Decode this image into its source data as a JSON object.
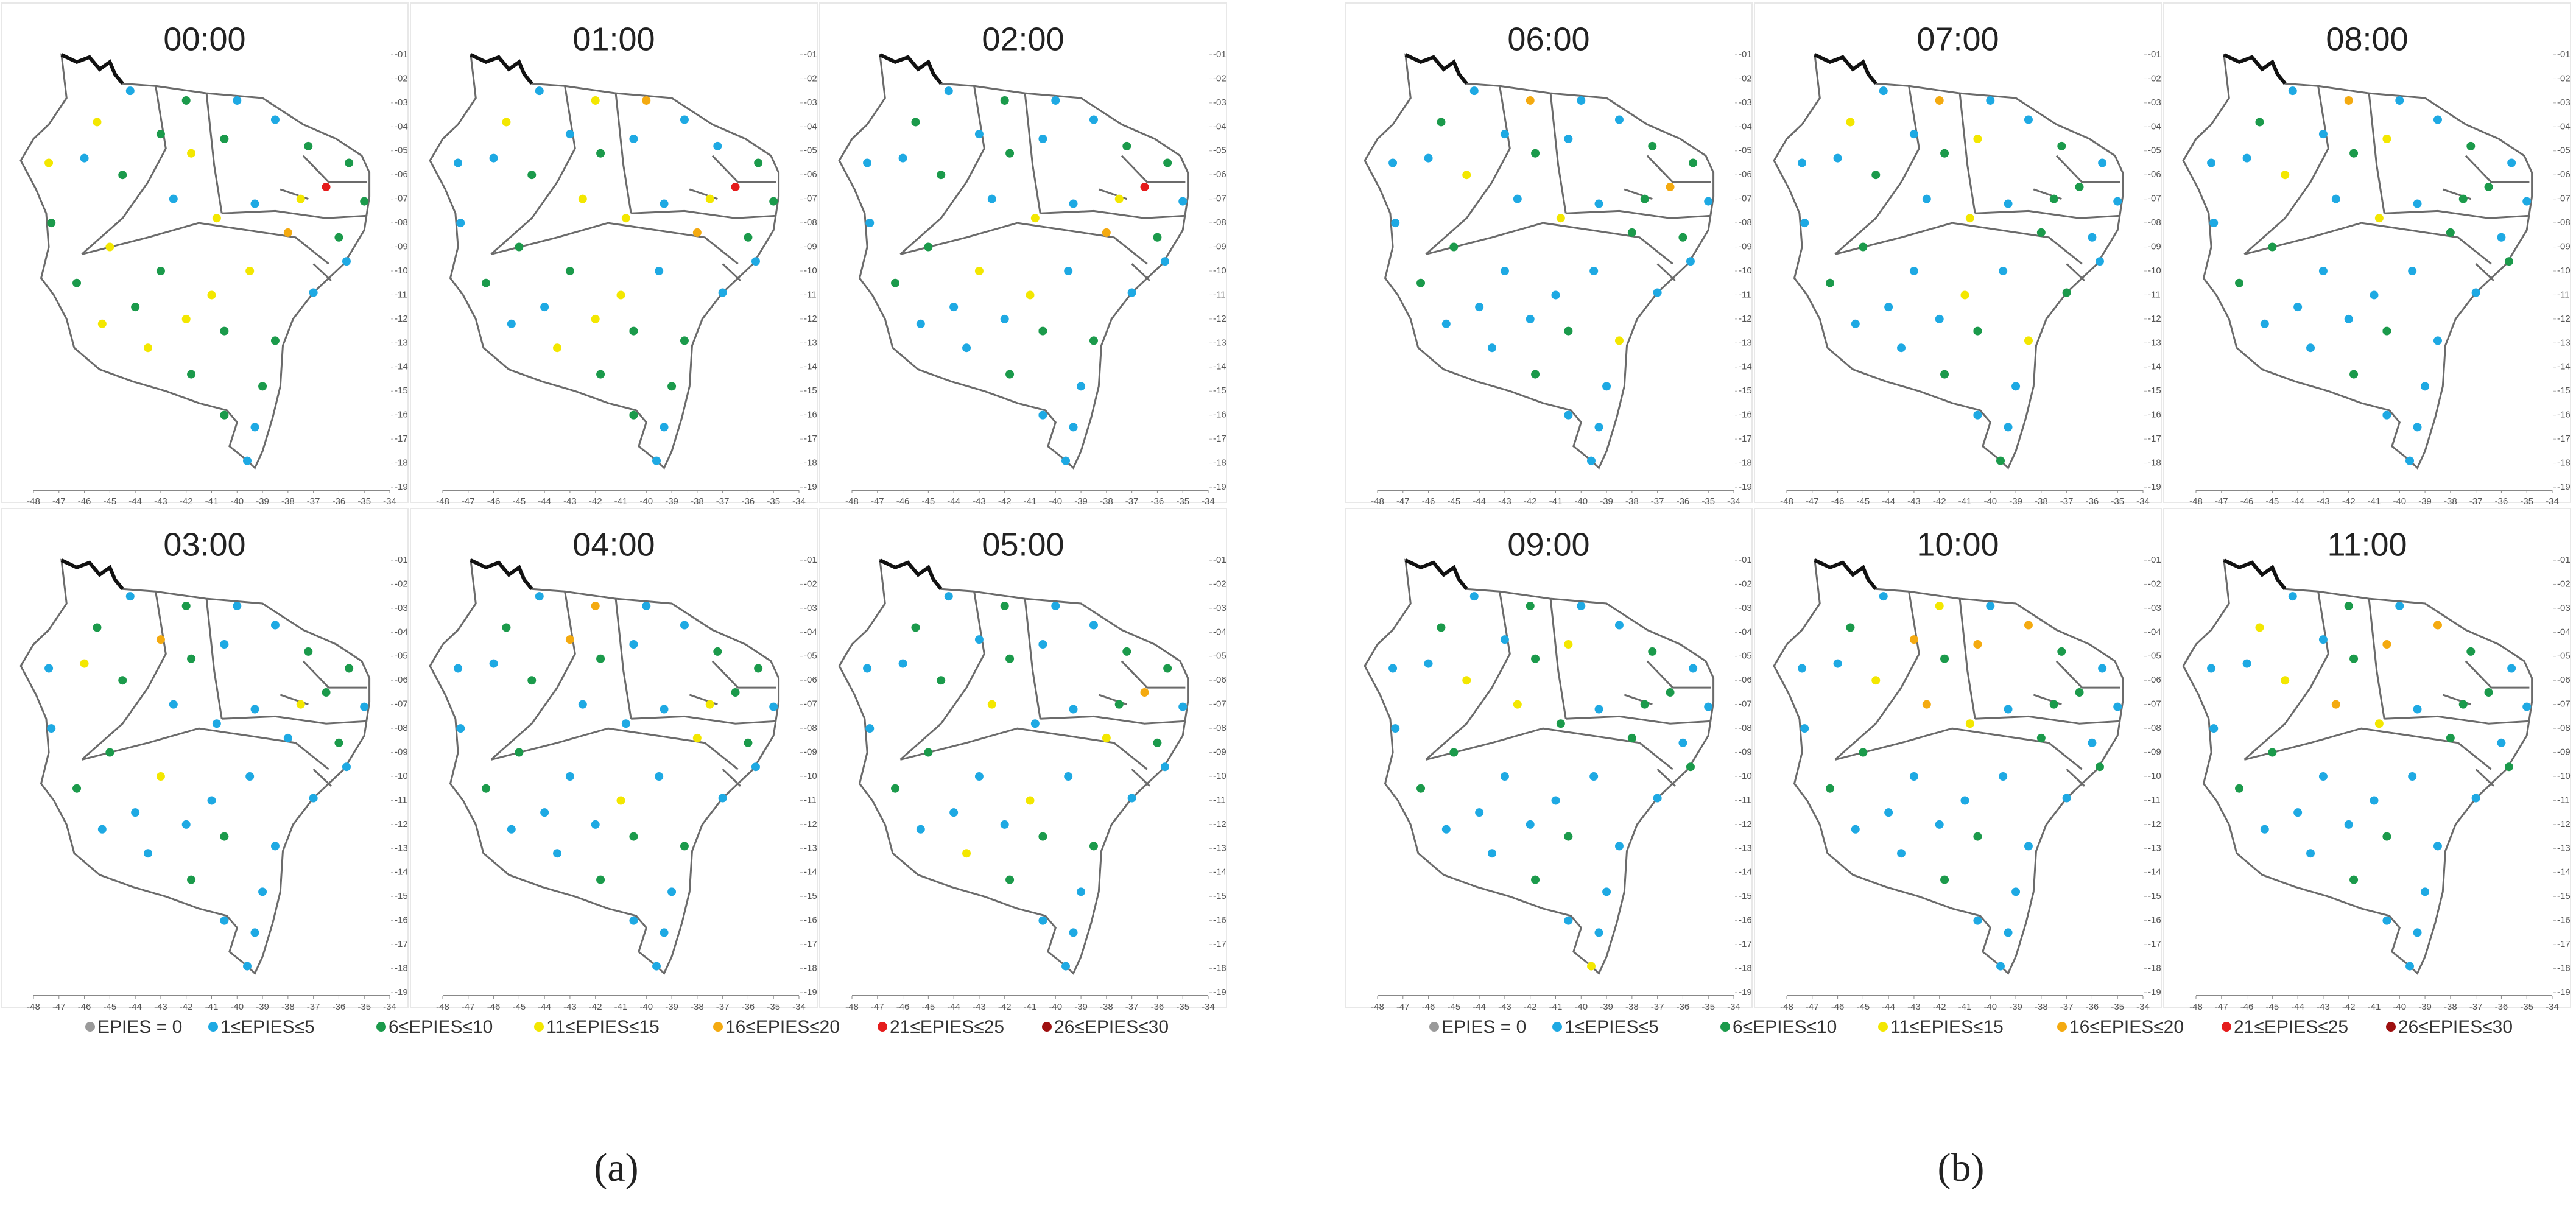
{
  "groups": [
    {
      "label": "(a)",
      "panels": [
        {
          "title": "00:00",
          "classes": [
            1,
            2,
            1,
            1,
            2,
            2,
            5,
            2,
            3,
            1,
            2,
            3,
            2,
            3,
            3,
            1,
            2,
            1,
            3,
            4,
            2,
            1,
            1,
            2,
            2,
            1,
            1,
            2,
            2,
            3,
            3,
            2,
            2,
            3,
            2,
            3,
            3,
            2,
            3,
            2
          ]
        },
        {
          "title": "01:00",
          "classes": [
            1,
            3,
            4,
            1,
            1,
            2,
            5,
            2,
            3,
            1,
            1,
            2,
            1,
            3,
            1,
            1,
            2,
            3,
            3,
            4,
            2,
            1,
            1,
            2,
            2,
            1,
            1,
            2,
            2,
            3,
            1,
            2,
            1,
            2,
            2,
            3,
            1,
            2,
            3,
            1
          ]
        },
        {
          "title": "02:00",
          "classes": [
            1,
            2,
            1,
            1,
            2,
            2,
            5,
            1,
            3,
            1,
            1,
            2,
            1,
            2,
            1,
            1,
            2,
            1,
            3,
            4,
            2,
            1,
            1,
            2,
            1,
            1,
            1,
            1,
            2,
            1,
            1,
            2,
            1,
            2,
            3,
            3,
            1,
            2,
            1,
            1
          ]
        },
        {
          "title": "03:00",
          "classes": [
            1,
            2,
            1,
            1,
            2,
            2,
            2,
            1,
            3,
            1,
            1,
            2,
            4,
            2,
            1,
            3,
            2,
            1,
            1,
            1,
            2,
            1,
            1,
            1,
            1,
            1,
            1,
            1,
            2,
            1,
            1,
            2,
            1,
            2,
            3,
            1,
            1,
            2,
            1,
            1
          ]
        },
        {
          "title": "04:00",
          "classes": [
            1,
            4,
            1,
            1,
            2,
            2,
            2,
            1,
            3,
            1,
            1,
            2,
            4,
            2,
            1,
            1,
            2,
            1,
            1,
            3,
            2,
            1,
            1,
            2,
            1,
            1,
            1,
            1,
            2,
            1,
            1,
            2,
            1,
            2,
            1,
            3,
            1,
            2,
            1,
            1
          ]
        },
        {
          "title": "05:00",
          "classes": [
            1,
            2,
            1,
            1,
            2,
            2,
            4,
            1,
            2,
            1,
            1,
            2,
            1,
            2,
            1,
            1,
            2,
            3,
            1,
            3,
            2,
            1,
            1,
            2,
            1,
            1,
            1,
            1,
            2,
            3,
            1,
            2,
            1,
            2,
            1,
            3,
            1,
            2,
            1,
            1
          ]
        }
      ]
    },
    {
      "label": "(b)",
      "panels": [
        {
          "title": "06:00",
          "classes": [
            1,
            4,
            1,
            1,
            2,
            2,
            4,
            1,
            2,
            1,
            1,
            2,
            1,
            2,
            1,
            1,
            3,
            1,
            3,
            2,
            2,
            1,
            1,
            3,
            1,
            1,
            1,
            1,
            2,
            1,
            1,
            2,
            1,
            2,
            1,
            1,
            1,
            2,
            1,
            1
          ]
        },
        {
          "title": "07:00",
          "classes": [
            1,
            4,
            1,
            1,
            2,
            1,
            2,
            1,
            2,
            1,
            3,
            2,
            1,
            3,
            1,
            1,
            2,
            1,
            3,
            2,
            1,
            1,
            2,
            3,
            1,
            1,
            2,
            1,
            2,
            1,
            1,
            2,
            1,
            2,
            1,
            3,
            1,
            2,
            1,
            1
          ]
        },
        {
          "title": "08:00",
          "classes": [
            1,
            4,
            1,
            1,
            2,
            1,
            2,
            1,
            2,
            1,
            3,
            2,
            1,
            2,
            1,
            1,
            3,
            1,
            3,
            2,
            1,
            2,
            1,
            1,
            1,
            1,
            1,
            1,
            2,
            1,
            1,
            2,
            1,
            2,
            1,
            1,
            1,
            2,
            1,
            1
          ]
        },
        {
          "title": "09:00",
          "classes": [
            1,
            2,
            1,
            1,
            2,
            1,
            2,
            1,
            2,
            1,
            3,
            2,
            1,
            2,
            1,
            1,
            3,
            3,
            2,
            2,
            1,
            2,
            1,
            1,
            1,
            1,
            3,
            1,
            2,
            1,
            1,
            2,
            1,
            2,
            1,
            1,
            1,
            2,
            1,
            1
          ]
        },
        {
          "title": "10:00",
          "classes": [
            1,
            3,
            1,
            4,
            2,
            1,
            2,
            1,
            2,
            1,
            4,
            2,
            4,
            2,
            1,
            1,
            3,
            4,
            3,
            2,
            1,
            2,
            1,
            1,
            1,
            1,
            1,
            1,
            2,
            1,
            1,
            2,
            1,
            2,
            1,
            1,
            1,
            2,
            1,
            1
          ]
        },
        {
          "title": "11:00",
          "classes": [
            1,
            2,
            1,
            4,
            2,
            1,
            2,
            1,
            2,
            1,
            4,
            2,
            1,
            3,
            1,
            1,
            3,
            4,
            3,
            2,
            1,
            2,
            1,
            1,
            1,
            1,
            1,
            1,
            2,
            1,
            1,
            2,
            1,
            2,
            1,
            1,
            1,
            2,
            1,
            1
          ]
        }
      ]
    }
  ],
  "legend": [
    {
      "label": "EPIES = 0",
      "color": "#9a9a9a"
    },
    {
      "label": "1≤EPIES≤5",
      "color": "#1ea9e3"
    },
    {
      "label": "6≤EPIES≤10",
      "color": "#1b9a4b"
    },
    {
      "label": "11≤EPIES≤15",
      "color": "#f3e700"
    },
    {
      "label": "16≤EPIES≤20",
      "color": "#f4aa10"
    },
    {
      "label": "21≤EPIES≤25",
      "color": "#e51c1c"
    },
    {
      "label": "26≤EPIES≤30",
      "color": "#9e1010"
    }
  ],
  "xticks": [
    -48,
    -47,
    -46,
    -45,
    -44,
    -43,
    -42,
    -41,
    -40,
    -39,
    -38,
    -37,
    -36,
    -35,
    -34
  ],
  "yticks": [
    {
      "value": -1,
      "label": "-01"
    },
    {
      "value": -2,
      "label": "-02"
    },
    {
      "value": -3,
      "label": "-03"
    },
    {
      "value": -4,
      "label": "-04"
    },
    {
      "value": -5,
      "label": "-05"
    },
    {
      "value": -6,
      "label": "-06"
    },
    {
      "value": -7,
      "label": "-07"
    },
    {
      "value": -8,
      "label": "-08"
    },
    {
      "value": -9,
      "label": "-09"
    },
    {
      "value": -10,
      "label": "-10"
    },
    {
      "value": -11,
      "label": "-11"
    },
    {
      "value": -12,
      "label": "-12"
    },
    {
      "value": -13,
      "label": "-13"
    },
    {
      "value": -14,
      "label": "-14"
    },
    {
      "value": -15,
      "label": "-15"
    },
    {
      "value": -16,
      "label": "-16"
    },
    {
      "value": -17,
      "label": "-17"
    },
    {
      "value": -18,
      "label": "-18"
    },
    {
      "value": -19,
      "label": "-19"
    }
  ],
  "stations": [
    {
      "lon": -44.2,
      "lat": -2.5
    },
    {
      "lon": -42.0,
      "lat": -2.9
    },
    {
      "lon": -40.0,
      "lat": -2.9
    },
    {
      "lon": -38.5,
      "lat": -3.7
    },
    {
      "lon": -37.2,
      "lat": -4.8
    },
    {
      "lon": -35.6,
      "lat": -5.5
    },
    {
      "lon": -36.5,
      "lat": -6.5
    },
    {
      "lon": -35.0,
      "lat": -7.1
    },
    {
      "lon": -37.5,
      "lat": -7.0
    },
    {
      "lon": -39.3,
      "lat": -7.2
    },
    {
      "lon": -40.5,
      "lat": -4.5
    },
    {
      "lon": -41.8,
      "lat": -5.1
    },
    {
      "lon": -43.0,
      "lat": -4.3
    },
    {
      "lon": -45.5,
      "lat": -3.8
    },
    {
      "lon": -47.4,
      "lat": -5.5
    },
    {
      "lon": -46.0,
      "lat": -5.3
    },
    {
      "lon": -44.5,
      "lat": -6.0
    },
    {
      "lon": -42.5,
      "lat": -7.0
    },
    {
      "lon": -40.8,
      "lat": -7.8
    },
    {
      "lon": -38.0,
      "lat": -8.4
    },
    {
      "lon": -36.0,
      "lat": -8.6
    },
    {
      "lon": -35.7,
      "lat": -9.6
    },
    {
      "lon": -37.0,
      "lat": -10.9
    },
    {
      "lon": -38.5,
      "lat": -12.9
    },
    {
      "lon": -39.0,
      "lat": -14.8
    },
    {
      "lon": -39.3,
      "lat": -16.5
    },
    {
      "lon": -39.6,
      "lat": -17.9
    },
    {
      "lon": -40.5,
      "lat": -16.0
    },
    {
      "lon": -41.8,
      "lat": -14.3
    },
    {
      "lon": -43.5,
      "lat": -13.2
    },
    {
      "lon": -45.3,
      "lat": -12.2
    },
    {
      "lon": -46.3,
      "lat": -10.5
    },
    {
      "lon": -47.3,
      "lat": -8.0
    },
    {
      "lon": -45.0,
      "lat": -9.0
    },
    {
      "lon": -43.0,
      "lat": -10.0
    },
    {
      "lon": -41.0,
      "lat": -11.0
    },
    {
      "lon": -39.5,
      "lat": -10.0
    },
    {
      "lon": -40.5,
      "lat": -12.5
    },
    {
      "lon": -42.0,
      "lat": -12.0
    },
    {
      "lon": -44.0,
      "lat": -11.5
    }
  ]
}
